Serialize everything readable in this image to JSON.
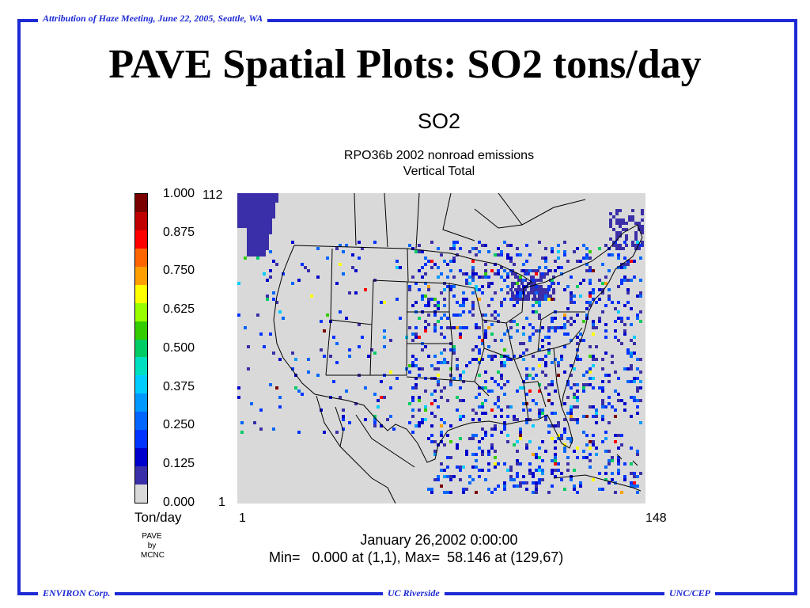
{
  "slide": {
    "header_note": "Attribution of Haze Meeting, June 22, 2005, Seattle, WA",
    "title": "PAVE Spatial Plots: SO2 tons/day",
    "footer_left": "ENVIRON Corp.",
    "footer_center": "UC Riverside",
    "footer_right": "UNC/CEP",
    "frame_color": "#1d2ad4"
  },
  "plot": {
    "species": "SO2",
    "subtitle_1": "RPO36b 2002 nonroad emissions",
    "subtitle_2": "Vertical Total",
    "units": "Ton/day",
    "credit": [
      "PAVE",
      "by",
      "MCNC"
    ],
    "date": "January 26,2002 0:00:00",
    "min_label": "Min=",
    "min_value": "0.000 at (1,1), Max=",
    "max_value": "58.146 at (129,67)",
    "x_axis": {
      "min": "1",
      "max": "148"
    },
    "y_axis": {
      "min": "1",
      "max": "112"
    },
    "map_background": "#d9d9d9",
    "water_color": "#3a2fa8",
    "legend": {
      "labels": [
        "1.000",
        "0.875",
        "0.750",
        "0.625",
        "0.500",
        "0.375",
        "0.250",
        "0.125",
        "0.000"
      ],
      "colors": [
        "#7a0000",
        "#c00000",
        "#ff0000",
        "#ff6600",
        "#ffa000",
        "#ffff00",
        "#99ff00",
        "#33cc00",
        "#00cc66",
        "#00e0c0",
        "#00ccff",
        "#0099ff",
        "#0066ff",
        "#0033ff",
        "#0000cc",
        "#3a2fa8",
        "#d9d9d9"
      ]
    }
  }
}
